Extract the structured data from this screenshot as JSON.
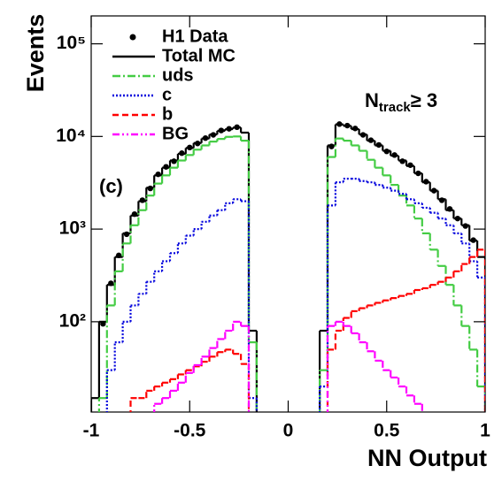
{
  "chart_data": {
    "type": "histogram",
    "y_label": "Events",
    "x_label": "NN Output",
    "annotations": [
      {
        "text": "(c)"
      },
      {
        "text": "N",
        "sub": "track",
        "rest": "≥ 3"
      }
    ],
    "bins": [
      -1,
      -0.96,
      -0.92,
      -0.88,
      -0.84,
      -0.8,
      -0.76,
      -0.72,
      -0.68,
      -0.64,
      -0.6,
      -0.56,
      -0.52,
      -0.48,
      -0.44,
      -0.4,
      -0.36,
      -0.32,
      -0.28,
      -0.24,
      -0.2,
      -0.16,
      -0.12,
      -0.08,
      -0.04,
      0,
      0.04,
      0.08,
      0.12,
      0.16,
      0.2,
      0.24,
      0.28,
      0.32,
      0.36,
      0.4,
      0.44,
      0.48,
      0.52,
      0.56,
      0.6,
      0.64,
      0.68,
      0.72,
      0.76,
      0.8,
      0.84,
      0.88,
      0.92,
      0.96,
      1
    ],
    "series": [
      {
        "name": "H1 Data",
        "color": "#000000",
        "style": "points",
        "values": [
          null,
          95,
          260,
          520,
          880,
          1450,
          2050,
          2750,
          3900,
          4700,
          5400,
          6600,
          7600,
          8400,
          9600,
          10400,
          11600,
          12100,
          12600,
          null,
          null,
          null,
          null,
          null,
          null,
          null,
          null,
          null,
          null,
          null,
          7800,
          13600,
          13100,
          12200,
          10400,
          9100,
          8100,
          6900,
          6300,
          5400,
          4900,
          4000,
          3250,
          2600,
          2050,
          1650,
          1300,
          1080,
          760,
          null
        ]
      },
      {
        "name": "Total MC",
        "color": "#000000",
        "style": "solid",
        "values": [
          15,
          100,
          250,
          500,
          900,
          1400,
          2000,
          2800,
          3800,
          4600,
          5500,
          6500,
          7500,
          8500,
          9500,
          10500,
          11500,
          12000,
          12500,
          11000,
          80,
          null,
          null,
          null,
          null,
          null,
          null,
          null,
          null,
          80,
          8000,
          13500,
          13000,
          12000,
          10500,
          9000,
          8000,
          7000,
          6200,
          5500,
          4800,
          4000,
          3200,
          2600,
          2100,
          1600,
          1300,
          1100,
          750,
          500
        ]
      },
      {
        "name": "uds",
        "color": "#44cc44",
        "style": "dashdot",
        "values": [
          null,
          15,
          150,
          350,
          700,
          1100,
          1600,
          2300,
          3100,
          3800,
          4600,
          5500,
          6300,
          7200,
          8000,
          8800,
          9400,
          9900,
          10000,
          9000,
          60,
          null,
          null,
          null,
          null,
          null,
          null,
          null,
          null,
          30,
          6000,
          9500,
          9000,
          8000,
          7000,
          5600,
          4600,
          3800,
          3000,
          2300,
          1800,
          1300,
          900,
          600,
          400,
          250,
          150,
          90,
          50,
          20
        ]
      },
      {
        "name": "c",
        "color": "#0000dd",
        "style": "dotted",
        "values": [
          null,
          null,
          30,
          60,
          100,
          150,
          200,
          270,
          350,
          450,
          550,
          700,
          850,
          1000,
          1200,
          1400,
          1600,
          1900,
          2100,
          2000,
          15,
          null,
          null,
          null,
          null,
          null,
          null,
          null,
          null,
          20,
          1800,
          3200,
          3500,
          3500,
          3300,
          3200,
          3000,
          2800,
          2600,
          2400,
          2100,
          1900,
          1700,
          1500,
          1300,
          1100,
          900,
          700,
          450,
          300
        ]
      },
      {
        "name": "b",
        "color": "#ff0000",
        "style": "dashed",
        "values": [
          null,
          null,
          null,
          null,
          null,
          15,
          15,
          18,
          20,
          22,
          24,
          27,
          30,
          33,
          37,
          42,
          47,
          50,
          45,
          35,
          null,
          null,
          null,
          null,
          null,
          null,
          null,
          null,
          null,
          null,
          50,
          80,
          110,
          130,
          140,
          150,
          160,
          170,
          180,
          190,
          200,
          220,
          230,
          250,
          270,
          300,
          350,
          420,
          500,
          600
        ]
      },
      {
        "name": "BG",
        "color": "#ff00ff",
        "style": "dashdotdot",
        "values": [
          null,
          null,
          null,
          null,
          null,
          null,
          null,
          null,
          13,
          15,
          18,
          22,
          28,
          34,
          42,
          52,
          65,
          80,
          100,
          90,
          null,
          null,
          null,
          null,
          null,
          null,
          null,
          null,
          null,
          null,
          90,
          100,
          90,
          75,
          60,
          48,
          38,
          30,
          25,
          20,
          16,
          13,
          null,
          null,
          null,
          null,
          null,
          null,
          null,
          null
        ]
      }
    ],
    "xlim": [
      -1,
      1
    ],
    "xticks": [
      -1,
      -0.5,
      0,
      0.5,
      1
    ],
    "ylim": [
      10.6,
      200000
    ],
    "log_y": true,
    "yticks": [
      {
        "value": 100,
        "label": "10²"
      },
      {
        "value": 1000,
        "label": "10³"
      },
      {
        "value": 10000,
        "label": "10⁴"
      },
      {
        "value": 100000,
        "label": "10⁵"
      }
    ],
    "legend": "upper left"
  }
}
